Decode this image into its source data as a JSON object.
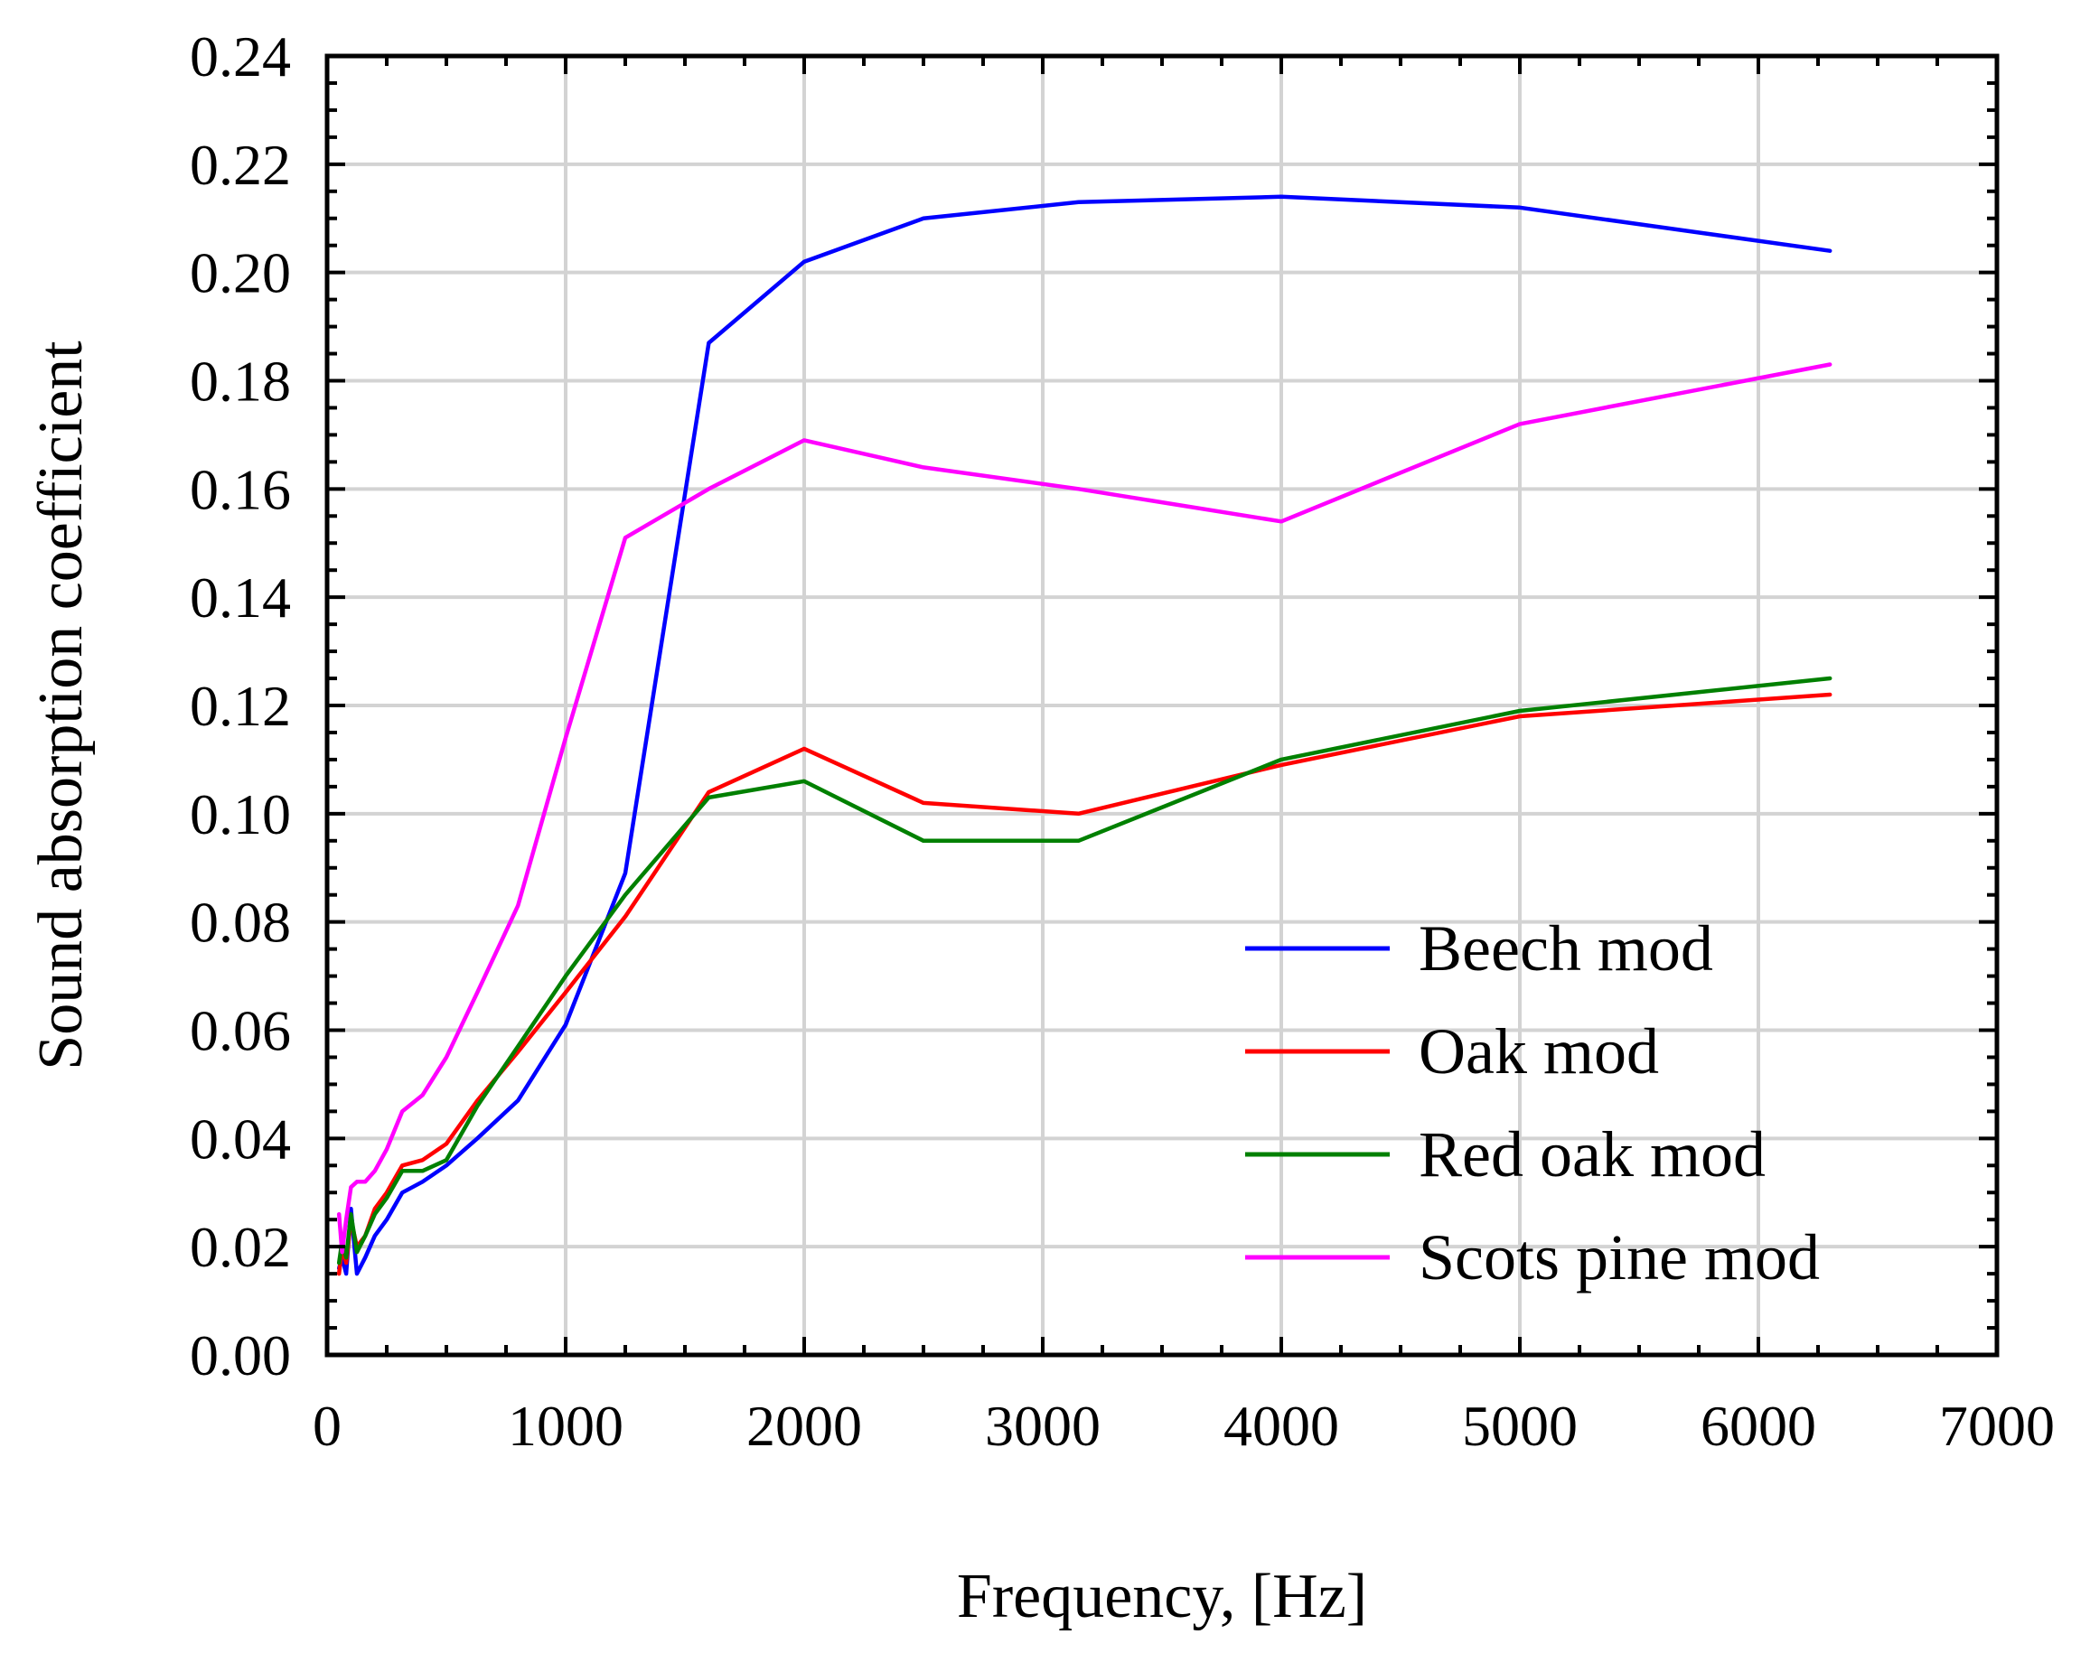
{
  "chart_data": {
    "type": "line",
    "title": "",
    "xlabel": "Frequency, [Hz]",
    "ylabel": "Sound absorption coefficient",
    "xlim": [
      0,
      7000
    ],
    "ylim": [
      0,
      0.24
    ],
    "x_ticks": [
      "0",
      "1000",
      "2000",
      "3000",
      "4000",
      "5000",
      "6000",
      "7000"
    ],
    "y_ticks": [
      "0.00",
      "0.02",
      "0.04",
      "0.06",
      "0.08",
      "0.10",
      "0.12",
      "0.14",
      "0.16",
      "0.18",
      "0.20",
      "0.22",
      "0.24"
    ],
    "grid": true,
    "legend_position": "bottom-right",
    "series": [
      {
        "name": "Beech mod",
        "color": "#0000ff",
        "x": [
          50,
          63,
          80,
          100,
          125,
          160,
          200,
          250,
          315,
          400,
          500,
          630,
          800,
          1000,
          1250,
          1600,
          2000,
          2500,
          3150,
          4000,
          5000,
          6300
        ],
        "y": [
          0.016,
          0.018,
          0.015,
          0.027,
          0.015,
          0.018,
          0.022,
          0.025,
          0.03,
          0.032,
          0.035,
          0.04,
          0.047,
          0.061,
          0.089,
          0.187,
          0.202,
          0.21,
          0.213,
          0.214,
          0.212,
          0.204
        ]
      },
      {
        "name": "Oak mod",
        "color": "#ff0000",
        "x": [
          50,
          63,
          80,
          100,
          125,
          160,
          200,
          250,
          315,
          400,
          500,
          630,
          800,
          1000,
          1250,
          1600,
          2000,
          2500,
          3150,
          4000,
          5000,
          6300
        ],
        "y": [
          0.015,
          0.02,
          0.017,
          0.025,
          0.02,
          0.022,
          0.027,
          0.03,
          0.035,
          0.036,
          0.039,
          0.047,
          0.056,
          0.067,
          0.081,
          0.104,
          0.112,
          0.102,
          0.1,
          0.109,
          0.118,
          0.122
        ]
      },
      {
        "name": "Red oak mod",
        "color": "#008000",
        "x": [
          50,
          63,
          80,
          100,
          125,
          160,
          200,
          250,
          315,
          400,
          500,
          630,
          800,
          1000,
          1250,
          1600,
          2000,
          2500,
          3150,
          4000,
          5000,
          6300
        ],
        "y": [
          0.017,
          0.021,
          0.018,
          0.026,
          0.019,
          0.022,
          0.026,
          0.029,
          0.034,
          0.034,
          0.036,
          0.046,
          0.057,
          0.07,
          0.085,
          0.103,
          0.106,
          0.095,
          0.095,
          0.11,
          0.119,
          0.125
        ]
      },
      {
        "name": "Scots pine mod",
        "color": "#ff00ff",
        "x": [
          50,
          63,
          80,
          100,
          125,
          160,
          200,
          250,
          315,
          400,
          500,
          630,
          800,
          1000,
          1250,
          1600,
          2000,
          2500,
          3150,
          4000,
          5000,
          6300
        ],
        "y": [
          0.026,
          0.019,
          0.025,
          0.031,
          0.032,
          0.032,
          0.034,
          0.038,
          0.045,
          0.048,
          0.055,
          0.067,
          0.083,
          0.114,
          0.151,
          0.16,
          0.169,
          0.164,
          0.16,
          0.154,
          0.172,
          0.183
        ]
      }
    ]
  }
}
